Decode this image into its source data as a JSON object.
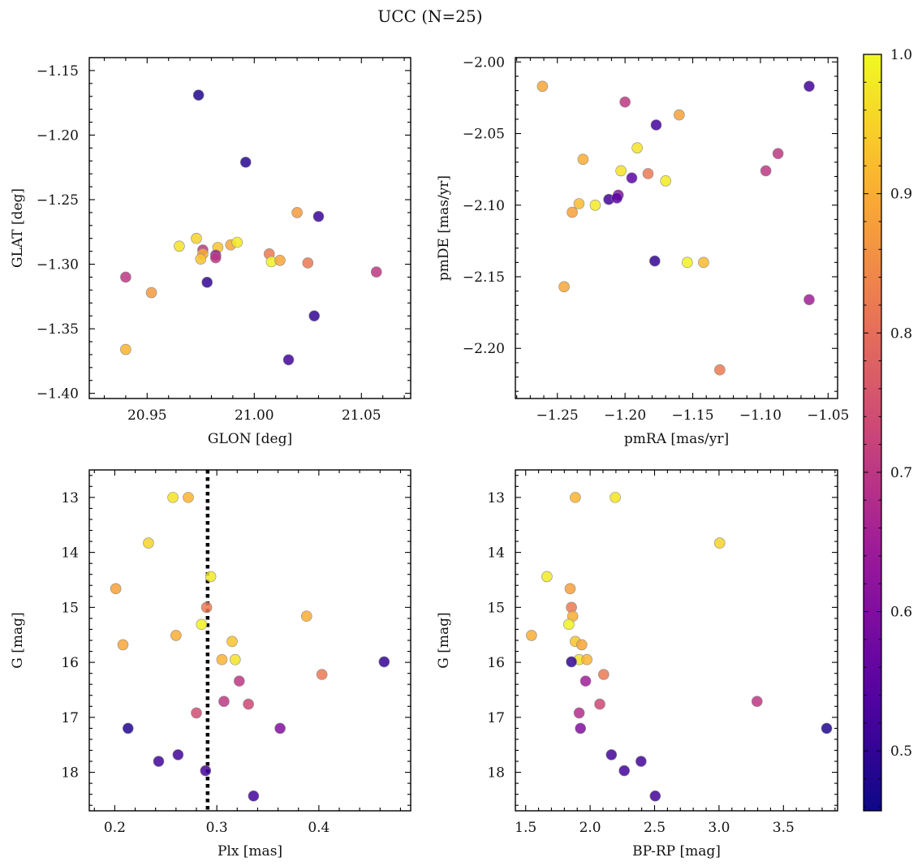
{
  "title": "UCC (N=25)",
  "colors": {
    "colormap": [
      "#0d0887",
      "#5b02a3",
      "#9a179b",
      "#cb4678",
      "#eb7852",
      "#fbb32f",
      "#f0f921"
    ],
    "point_edge": "#8a8a8a",
    "dotted_line": "#000000"
  },
  "chart_data": [
    {
      "type": "scatter",
      "xlabel": "GLON [deg]",
      "ylabel": "GLAT [deg]",
      "xlim": [
        20.923,
        21.073
      ],
      "ylim": [
        -1.404,
        -1.14
      ],
      "xticks": [
        "20.95",
        "21.00",
        "21.05"
      ],
      "xtick_values": [
        20.95,
        21.0,
        21.05
      ],
      "yticks": [
        "−1.15",
        "−1.20",
        "−1.25",
        "−1.30",
        "−1.35",
        "−1.40"
      ],
      "ytick_values": [
        -1.15,
        -1.2,
        -1.25,
        -1.3,
        -1.35,
        -1.4
      ],
      "invert_y": false,
      "points": [
        {
          "x": 20.974,
          "y": -1.169,
          "c": 0.48
        },
        {
          "x": 20.996,
          "y": -1.221,
          "c": 0.49
        },
        {
          "x": 21.03,
          "y": -1.263,
          "c": 0.51
        },
        {
          "x": 21.02,
          "y": -1.26,
          "c": 0.87
        },
        {
          "x": 20.965,
          "y": -1.286,
          "c": 0.97
        },
        {
          "x": 20.973,
          "y": -1.28,
          "c": 0.95
        },
        {
          "x": 20.976,
          "y": -1.289,
          "c": 0.7
        },
        {
          "x": 20.976,
          "y": -1.292,
          "c": 0.9
        },
        {
          "x": 20.975,
          "y": -1.296,
          "c": 0.93
        },
        {
          "x": 20.983,
          "y": -1.287,
          "c": 0.93
        },
        {
          "x": 20.989,
          "y": -1.285,
          "c": 0.89
        },
        {
          "x": 20.992,
          "y": -1.283,
          "c": 0.98
        },
        {
          "x": 20.982,
          "y": -1.293,
          "c": 0.62
        },
        {
          "x": 20.982,
          "y": -1.295,
          "c": 0.7
        },
        {
          "x": 21.007,
          "y": -1.292,
          "c": 0.82
        },
        {
          "x": 21.008,
          "y": -1.298,
          "c": 0.99
        },
        {
          "x": 21.012,
          "y": -1.297,
          "c": 0.89
        },
        {
          "x": 21.025,
          "y": -1.299,
          "c": 0.82
        },
        {
          "x": 21.057,
          "y": -1.306,
          "c": 0.7
        },
        {
          "x": 20.94,
          "y": -1.31,
          "c": 0.7
        },
        {
          "x": 20.952,
          "y": -1.322,
          "c": 0.87
        },
        {
          "x": 20.978,
          "y": -1.314,
          "c": 0.5
        },
        {
          "x": 21.028,
          "y": -1.34,
          "c": 0.5
        },
        {
          "x": 21.016,
          "y": -1.374,
          "c": 0.52
        },
        {
          "x": 20.94,
          "y": -1.366,
          "c": 0.91
        }
      ]
    },
    {
      "type": "scatter",
      "xlabel": "pmRA [mas/yr]",
      "ylabel": "pmDE [mas/yr]",
      "xlim": [
        -1.281,
        -1.043
      ],
      "ylim": [
        -2.235,
        -1.997
      ],
      "xticks": [
        "−1.25",
        "−1.20",
        "−1.15",
        "−1.10",
        "−1.05"
      ],
      "xtick_values": [
        -1.25,
        -1.2,
        -1.15,
        -1.1,
        -1.05
      ],
      "yticks": [
        "−2.00",
        "−2.05",
        "−2.10",
        "−2.15",
        "−2.20"
      ],
      "ytick_values": [
        -2.0,
        -2.05,
        -2.1,
        -2.15,
        -2.2
      ],
      "invert_y": false,
      "points": [
        {
          "x": -1.261,
          "y": -2.017,
          "c": 0.89
        },
        {
          "x": -1.2,
          "y": -2.028,
          "c": 0.7
        },
        {
          "x": -1.064,
          "y": -2.017,
          "c": 0.52
        },
        {
          "x": -1.16,
          "y": -2.037,
          "c": 0.88
        },
        {
          "x": -1.177,
          "y": -2.044,
          "c": 0.52
        },
        {
          "x": -1.191,
          "y": -2.06,
          "c": 0.97
        },
        {
          "x": -1.087,
          "y": -2.064,
          "c": 0.7
        },
        {
          "x": -1.231,
          "y": -2.068,
          "c": 0.9
        },
        {
          "x": -1.203,
          "y": -2.076,
          "c": 0.97
        },
        {
          "x": -1.183,
          "y": -2.078,
          "c": 0.82
        },
        {
          "x": -1.096,
          "y": -2.076,
          "c": 0.7
        },
        {
          "x": -1.195,
          "y": -2.081,
          "c": 0.55
        },
        {
          "x": -1.17,
          "y": -2.083,
          "c": 0.98
        },
        {
          "x": -1.205,
          "y": -2.093,
          "c": 0.6
        },
        {
          "x": -1.212,
          "y": -2.096,
          "c": 0.52
        },
        {
          "x": -1.206,
          "y": -2.095,
          "c": 0.55
        },
        {
          "x": -1.234,
          "y": -2.099,
          "c": 0.92
        },
        {
          "x": -1.222,
          "y": -2.1,
          "c": 0.98
        },
        {
          "x": -1.239,
          "y": -2.105,
          "c": 0.88
        },
        {
          "x": -1.178,
          "y": -2.139,
          "c": 0.5
        },
        {
          "x": -1.154,
          "y": -2.14,
          "c": 0.99
        },
        {
          "x": -1.142,
          "y": -2.14,
          "c": 0.92
        },
        {
          "x": -1.245,
          "y": -2.157,
          "c": 0.89
        },
        {
          "x": -1.064,
          "y": -2.166,
          "c": 0.65
        },
        {
          "x": -1.13,
          "y": -2.215,
          "c": 0.82
        }
      ]
    },
    {
      "type": "scatter",
      "xlabel": "Plx [mas]",
      "ylabel": "G [mag]",
      "xlim": [
        0.175,
        0.49
      ],
      "ylim": [
        18.7,
        12.5
      ],
      "xticks": [
        "0.2",
        "0.3",
        "0.4"
      ],
      "xtick_values": [
        0.2,
        0.3,
        0.4
      ],
      "yticks": [
        "13",
        "14",
        "15",
        "16",
        "17",
        "18"
      ],
      "ytick_values": [
        13,
        14,
        15,
        16,
        17,
        18
      ],
      "invert_y": true,
      "vline_x": 0.291,
      "points": [
        {
          "x": 0.257,
          "y": 13.0,
          "c": 0.97
        },
        {
          "x": 0.272,
          "y": 13.0,
          "c": 0.91
        },
        {
          "x": 0.233,
          "y": 13.83,
          "c": 0.95
        },
        {
          "x": 0.294,
          "y": 14.44,
          "c": 0.98
        },
        {
          "x": 0.201,
          "y": 14.66,
          "c": 0.88
        },
        {
          "x": 0.29,
          "y": 15.0,
          "c": 0.82
        },
        {
          "x": 0.388,
          "y": 15.16,
          "c": 0.9
        },
        {
          "x": 0.285,
          "y": 15.31,
          "c": 0.99
        },
        {
          "x": 0.26,
          "y": 15.51,
          "c": 0.9
        },
        {
          "x": 0.315,
          "y": 15.62,
          "c": 0.93
        },
        {
          "x": 0.208,
          "y": 15.68,
          "c": 0.89
        },
        {
          "x": 0.305,
          "y": 15.95,
          "c": 0.91
        },
        {
          "x": 0.318,
          "y": 15.95,
          "c": 0.97
        },
        {
          "x": 0.464,
          "y": 15.99,
          "c": 0.5
        },
        {
          "x": 0.403,
          "y": 16.22,
          "c": 0.82
        },
        {
          "x": 0.322,
          "y": 16.34,
          "c": 0.7
        },
        {
          "x": 0.307,
          "y": 16.71,
          "c": 0.7
        },
        {
          "x": 0.331,
          "y": 16.76,
          "c": 0.73
        },
        {
          "x": 0.28,
          "y": 16.92,
          "c": 0.74
        },
        {
          "x": 0.213,
          "y": 17.2,
          "c": 0.48
        },
        {
          "x": 0.362,
          "y": 17.2,
          "c": 0.6
        },
        {
          "x": 0.262,
          "y": 17.68,
          "c": 0.52
        },
        {
          "x": 0.243,
          "y": 17.8,
          "c": 0.52
        },
        {
          "x": 0.289,
          "y": 17.97,
          "c": 0.52
        },
        {
          "x": 0.336,
          "y": 18.43,
          "c": 0.52
        }
      ]
    },
    {
      "type": "scatter",
      "xlabel": "BP-RP [mag]",
      "ylabel": "G [mag]",
      "xlim": [
        1.42,
        3.92
      ],
      "ylim": [
        18.7,
        12.5
      ],
      "xticks": [
        "1.5",
        "2.0",
        "2.5",
        "3.0",
        "3.5"
      ],
      "xtick_values": [
        1.5,
        2.0,
        2.5,
        3.0,
        3.5
      ],
      "yticks": [
        "13",
        "14",
        "15",
        "16",
        "17",
        "18"
      ],
      "ytick_values": [
        13,
        14,
        15,
        16,
        17,
        18
      ],
      "invert_y": true,
      "points": [
        {
          "x": 1.885,
          "y": 13.0,
          "c": 0.91
        },
        {
          "x": 2.195,
          "y": 13.0,
          "c": 0.97
        },
        {
          "x": 3.005,
          "y": 13.83,
          "c": 0.95
        },
        {
          "x": 1.665,
          "y": 14.44,
          "c": 0.98
        },
        {
          "x": 1.845,
          "y": 14.66,
          "c": 0.88
        },
        {
          "x": 1.855,
          "y": 15.0,
          "c": 0.82
        },
        {
          "x": 1.865,
          "y": 15.16,
          "c": 0.9
        },
        {
          "x": 1.835,
          "y": 15.31,
          "c": 0.99
        },
        {
          "x": 1.545,
          "y": 15.51,
          "c": 0.9
        },
        {
          "x": 1.885,
          "y": 15.62,
          "c": 0.93
        },
        {
          "x": 1.935,
          "y": 15.68,
          "c": 0.89
        },
        {
          "x": 1.915,
          "y": 15.95,
          "c": 0.97
        },
        {
          "x": 1.975,
          "y": 15.95,
          "c": 0.91
        },
        {
          "x": 1.855,
          "y": 15.99,
          "c": 0.5
        },
        {
          "x": 2.105,
          "y": 16.22,
          "c": 0.82
        },
        {
          "x": 1.965,
          "y": 16.34,
          "c": 0.65
        },
        {
          "x": 3.295,
          "y": 16.71,
          "c": 0.7
        },
        {
          "x": 2.075,
          "y": 16.76,
          "c": 0.73
        },
        {
          "x": 1.915,
          "y": 16.92,
          "c": 0.68
        },
        {
          "x": 3.835,
          "y": 17.2,
          "c": 0.48
        },
        {
          "x": 1.925,
          "y": 17.2,
          "c": 0.6
        },
        {
          "x": 2.165,
          "y": 17.68,
          "c": 0.52
        },
        {
          "x": 2.395,
          "y": 17.8,
          "c": 0.52
        },
        {
          "x": 2.265,
          "y": 17.97,
          "c": 0.52
        },
        {
          "x": 2.505,
          "y": 18.43,
          "c": 0.52
        }
      ]
    }
  ],
  "colorbar": {
    "range": [
      0.457,
      1.0
    ],
    "ticks": [
      "0.5",
      "0.6",
      "0.7",
      "0.8",
      "0.9",
      "1.0"
    ],
    "tick_values": [
      0.5,
      0.6,
      0.7,
      0.8,
      0.9,
      1.0
    ],
    "colormap": "plasma"
  }
}
